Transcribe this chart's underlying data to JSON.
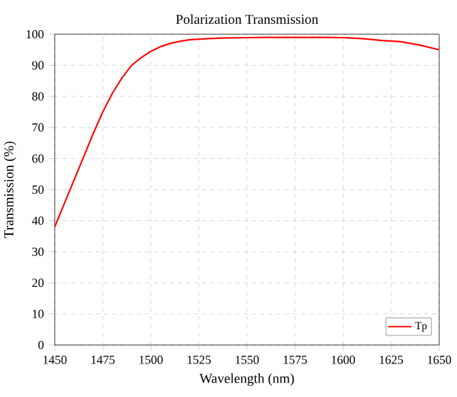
{
  "chart_data": {
    "type": "line",
    "title": "Polarization Transmission",
    "xlabel": "Wavelength (nm)",
    "ylabel": "Transmission (%)",
    "x": [
      1450,
      1455,
      1460,
      1465,
      1470,
      1475,
      1480,
      1485,
      1490,
      1495,
      1500,
      1505,
      1510,
      1515,
      1520,
      1530,
      1540,
      1550,
      1560,
      1575,
      1590,
      1600,
      1610,
      1620,
      1630,
      1640,
      1650
    ],
    "series": [
      {
        "name": "Tp",
        "color": "#ff0000",
        "values": [
          38,
          45.5,
          53,
          60.5,
          68,
          75,
          81,
          86,
          90,
          92.5,
          94.5,
          96,
          97,
          97.7,
          98.2,
          98.6,
          98.8,
          98.9,
          99,
          99,
          99,
          98.9,
          98.6,
          98,
          97.6,
          96.5,
          95
        ]
      }
    ],
    "xlim": [
      1450,
      1650
    ],
    "ylim": [
      0,
      100
    ],
    "xticks": [
      1450,
      1475,
      1500,
      1525,
      1550,
      1575,
      1600,
      1625,
      1650
    ],
    "yticks": [
      0,
      10,
      20,
      30,
      40,
      50,
      60,
      70,
      80,
      90,
      100
    ],
    "grid": true,
    "legend": "bottom right",
    "line_style": "solid",
    "marker": "none"
  }
}
